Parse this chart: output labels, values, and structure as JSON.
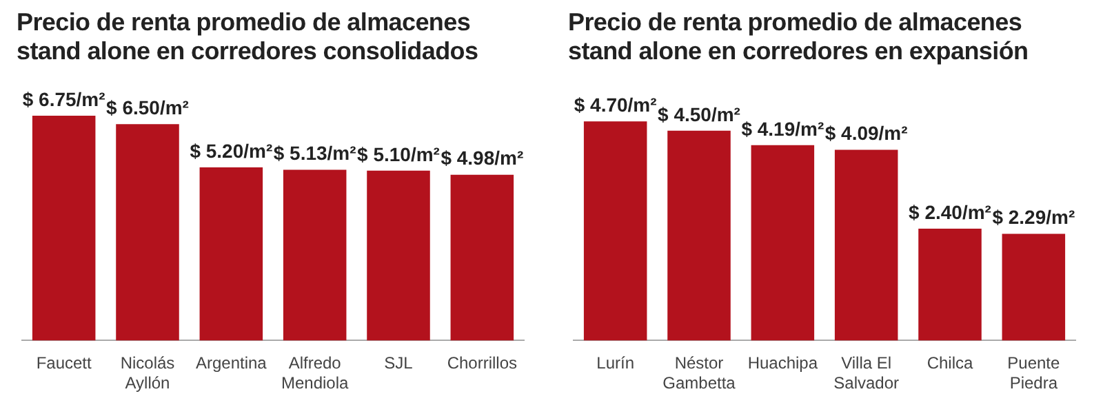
{
  "chart_data": [
    {
      "type": "bar",
      "title": "Precio de renta promedio de almacenes stand alone en corredores consolidados",
      "categories": [
        "Faucett",
        "Nicolás Ayllón",
        "Argentina",
        "Alfredo Mendiola",
        "SJL",
        "Chorrillos"
      ],
      "values": [
        6.75,
        6.5,
        5.2,
        5.13,
        5.1,
        4.98
      ],
      "value_labels": [
        "$ 6.75/m²",
        "$ 6.50/m²",
        "$ 5.20/m²",
        "$ 5.13/m²",
        "$ 5.10/m²",
        "$ 4.98/m²"
      ],
      "color": "#b3121d",
      "grid": false,
      "legend": false,
      "tick_labels": "x"
    },
    {
      "type": "bar",
      "title": "Precio de renta promedio de almacenes stand alone en corredores en expansión",
      "categories": [
        "Lurín",
        "Néstor Gambetta",
        "Huachipa",
        "Villa El Salvador",
        "Chilca",
        "Puente Piedra"
      ],
      "values": [
        4.7,
        4.5,
        4.19,
        4.09,
        2.4,
        2.29
      ],
      "value_labels": [
        "$ 4.70/m²",
        "$ 4.50/m²",
        "$ 4.19/m²",
        "$ 4.09/m²",
        "$ 2.40/m²",
        "$ 2.29/m²"
      ],
      "color": "#b3121d",
      "grid": false,
      "legend": false,
      "tick_labels": "x"
    }
  ]
}
